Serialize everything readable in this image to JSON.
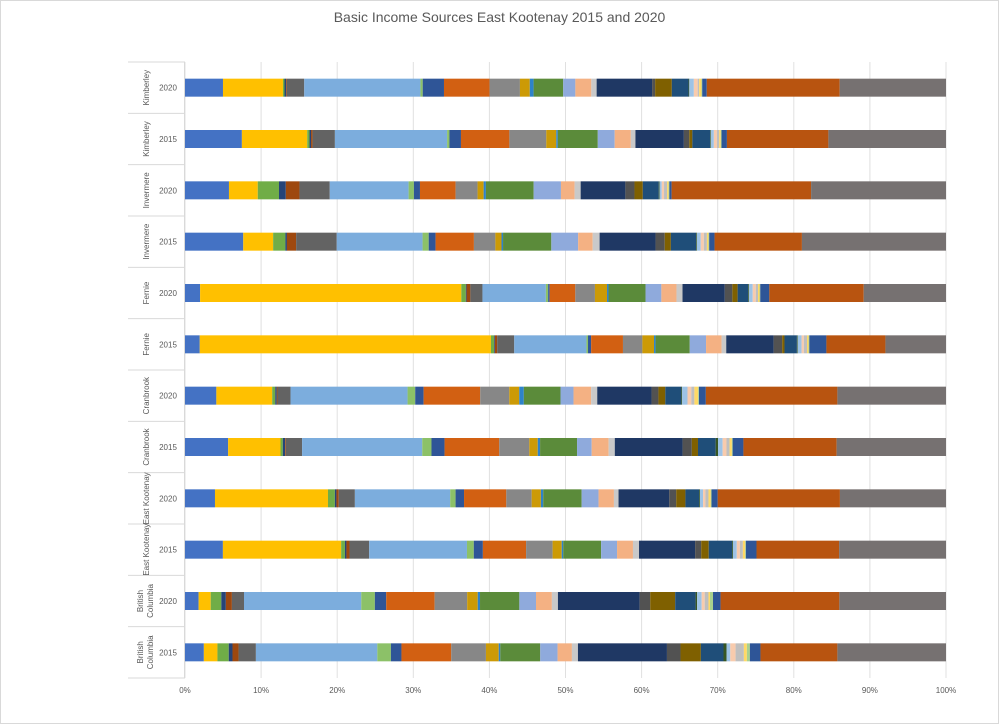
{
  "chart_data": {
    "type": "bar",
    "orientation": "horizontal",
    "stacked": "percent",
    "title": "Basic Income Sources East Kootenay 2015 and 2020",
    "xlabel": "",
    "ylabel": "",
    "xlim": [
      0,
      100
    ],
    "x_ticks": [
      "0%",
      "10%",
      "20%",
      "30%",
      "40%",
      "50%",
      "60%",
      "70%",
      "80%",
      "90%",
      "100%"
    ],
    "grid": true,
    "legend": "none",
    "categories": [
      {
        "region": "Kimberley",
        "year": "2020"
      },
      {
        "region": "Kimberley",
        "year": "2015"
      },
      {
        "region": "Invermere",
        "year": "2020"
      },
      {
        "region": "Invermere",
        "year": "2015"
      },
      {
        "region": "Fernie",
        "year": "2020"
      },
      {
        "region": "Fernie",
        "year": "2015"
      },
      {
        "region": "Cranbrook",
        "year": "2020"
      },
      {
        "region": "Cranbrook",
        "year": "2015"
      },
      {
        "region": "East Kootenay",
        "year": "2020"
      },
      {
        "region": "East Kootenay",
        "year": "2015"
      },
      {
        "region": "British Columbia",
        "year": "2020"
      },
      {
        "region": "British Columbia",
        "year": "2015"
      }
    ],
    "series_colors": [
      "#4472c4",
      "#ffc000",
      "#70ad47",
      "#264478",
      "#9e480e",
      "#636363",
      "#7caddd",
      "#8cc168",
      "#2f5597",
      "#d26012",
      "#878787",
      "#cc9a06",
      "#2e83c9",
      "#5b8b3a",
      "#8faadc",
      "#f4b183",
      "#c9c9c9",
      "#1f3864",
      "#525252",
      "#7f6000",
      "#1f4e79",
      "#375623",
      "#9dc3e6",
      "#f8cbad",
      "#bfbfbf",
      "#ffd966",
      "#a9d18e",
      "#2e5597",
      "#b85410",
      "#767171"
    ],
    "rows": [
      [
        5.0,
        7.9,
        0.2,
        0.2,
        0.1,
        2.3,
        15.3,
        0.3,
        2.8,
        6.0,
        4.0,
        1.3,
        0.5,
        3.9,
        1.6,
        2.1,
        0.7,
        7.3,
        0.4,
        2.2,
        2.2,
        0.1,
        0.6,
        0.5,
        0.2,
        0.3,
        0.1,
        0.6,
        17.5,
        14.0
      ],
      [
        7.4,
        8.5,
        0.3,
        0.2,
        0.2,
        2.9,
        14.6,
        0.3,
        1.5,
        6.3,
        4.8,
        1.3,
        0.2,
        5.2,
        2.2,
        2.1,
        0.6,
        6.3,
        0.7,
        0.4,
        2.3,
        0.1,
        0.4,
        0.4,
        0.3,
        0.2,
        0.1,
        0.7,
        13.2,
        15.3
      ],
      [
        5.8,
        3.8,
        2.8,
        0.9,
        1.8,
        4.0,
        10.4,
        0.7,
        0.8,
        4.7,
        2.9,
        0.8,
        0.3,
        6.3,
        3.6,
        1.8,
        0.8,
        5.9,
        1.2,
        1.1,
        2.1,
        0.1,
        0.3,
        0.3,
        0.4,
        0.2,
        0.1,
        0.3,
        18.4,
        17.8
      ],
      [
        7.6,
        3.9,
        1.6,
        0.2,
        1.2,
        5.3,
        11.2,
        0.8,
        0.9,
        5.0,
        2.8,
        0.8,
        0.2,
        6.3,
        3.5,
        1.9,
        0.9,
        7.3,
        1.2,
        0.8,
        3.3,
        0.1,
        0.5,
        0.4,
        0.4,
        0.2,
        0.1,
        0.7,
        11.4,
        18.8
      ],
      [
        2.0,
        34.6,
        0.6,
        0.1,
        0.5,
        1.6,
        8.4,
        0.3,
        0.2,
        3.4,
        2.6,
        1.6,
        0.2,
        4.9,
        2.1,
        2.0,
        0.8,
        5.6,
        1.0,
        0.7,
        1.4,
        0.1,
        0.5,
        0.4,
        0.3,
        0.2,
        0.1,
        1.2,
        12.5,
        10.9
      ],
      [
        1.9,
        37.5,
        0.4,
        0.1,
        0.3,
        2.2,
        9.3,
        0.2,
        0.4,
        4.1,
        2.5,
        1.5,
        0.2,
        4.4,
        2.1,
        2.0,
        0.6,
        6.1,
        1.1,
        0.3,
        1.6,
        0.1,
        0.5,
        0.3,
        0.4,
        0.2,
        0.1,
        2.2,
        7.6,
        7.8
      ],
      [
        4.1,
        7.3,
        0.4,
        0.2,
        0.1,
        1.7,
        15.3,
        1.0,
        1.1,
        7.4,
        3.8,
        1.3,
        0.6,
        4.8,
        1.7,
        2.3,
        0.8,
        7.1,
        0.9,
        0.9,
        2.1,
        0.1,
        0.7,
        0.5,
        0.4,
        0.5,
        0.1,
        0.9,
        17.2,
        14.2
      ],
      [
        5.6,
        6.8,
        0.3,
        0.3,
        0.1,
        2.1,
        15.6,
        1.2,
        1.7,
        7.1,
        3.9,
        1.1,
        0.3,
        4.8,
        1.9,
        2.2,
        0.8,
        8.8,
        1.2,
        0.8,
        2.3,
        0.3,
        0.6,
        0.5,
        0.4,
        0.3,
        0.1,
        1.4,
        12.1,
        14.2
      ],
      [
        3.9,
        14.7,
        0.9,
        0.2,
        0.3,
        2.1,
        12.4,
        0.7,
        1.1,
        5.5,
        3.3,
        1.2,
        0.3,
        5.0,
        2.2,
        2.0,
        0.6,
        6.6,
        0.9,
        1.2,
        1.8,
        0.1,
        0.4,
        0.3,
        0.4,
        0.3,
        0.1,
        0.8,
        15.9,
        13.8
      ],
      [
        5.0,
        15.6,
        0.5,
        0.2,
        0.4,
        2.6,
        12.9,
        0.9,
        1.2,
        5.7,
        3.5,
        1.2,
        0.2,
        5.0,
        2.1,
        2.1,
        0.8,
        7.4,
        0.8,
        1.0,
        3.1,
        0.1,
        0.5,
        0.4,
        0.4,
        0.3,
        0.1,
        1.4,
        10.9,
        14.1
      ],
      [
        1.8,
        1.6,
        1.4,
        0.6,
        0.8,
        1.6,
        15.5,
        1.8,
        1.5,
        6.4,
        4.3,
        1.4,
        0.3,
        5.2,
        2.2,
        2.1,
        0.8,
        10.8,
        1.4,
        3.3,
        2.7,
        0.2,
        0.6,
        0.4,
        0.5,
        0.2,
        0.4,
        1.0,
        15.7,
        14.1
      ],
      [
        2.5,
        1.8,
        1.5,
        0.5,
        0.8,
        2.3,
        16.1,
        1.8,
        1.4,
        6.6,
        4.6,
        1.7,
        0.2,
        5.3,
        2.3,
        1.9,
        0.8,
        11.8,
        1.8,
        2.7,
        3.0,
        0.4,
        0.5,
        0.7,
        1.1,
        0.4,
        0.4,
        1.4,
        10.2,
        14.4
      ]
    ]
  }
}
